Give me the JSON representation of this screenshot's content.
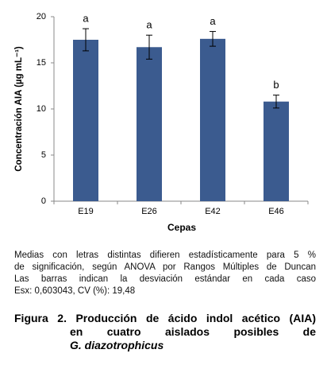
{
  "chart_data": {
    "type": "bar",
    "categories": [
      "E19",
      "E26",
      "E42",
      "E46"
    ],
    "values": [
      17.5,
      16.7,
      17.6,
      10.8
    ],
    "errors": [
      1.2,
      1.3,
      0.8,
      0.7
    ],
    "value_labels": [
      "a",
      "a",
      "a",
      "b"
    ],
    "color": "#3b5b8f",
    "ylim": [
      0,
      20
    ],
    "yticks": [
      0,
      5,
      10,
      15,
      20
    ],
    "grid": false,
    "xlabel": "Cepas",
    "ylabel": "Concentración AIA (µg mL⁻¹)"
  },
  "notes": [
    "Medias con letras distintas difieren estadísticamente para 5 %",
    "de significación, según ANOVA por Rangos Múltiples de Duncan",
    "Las barras indican la desviación estándar en cada caso",
    "Esx: 0,603043, CV (%): 19,48"
  ],
  "caption": {
    "label": "Figura 2.",
    "line1": "Producción de ácido indol acético (AIA)",
    "line2": "en cuatro aislados posibles de",
    "organism": "G. diazotrophicus"
  }
}
